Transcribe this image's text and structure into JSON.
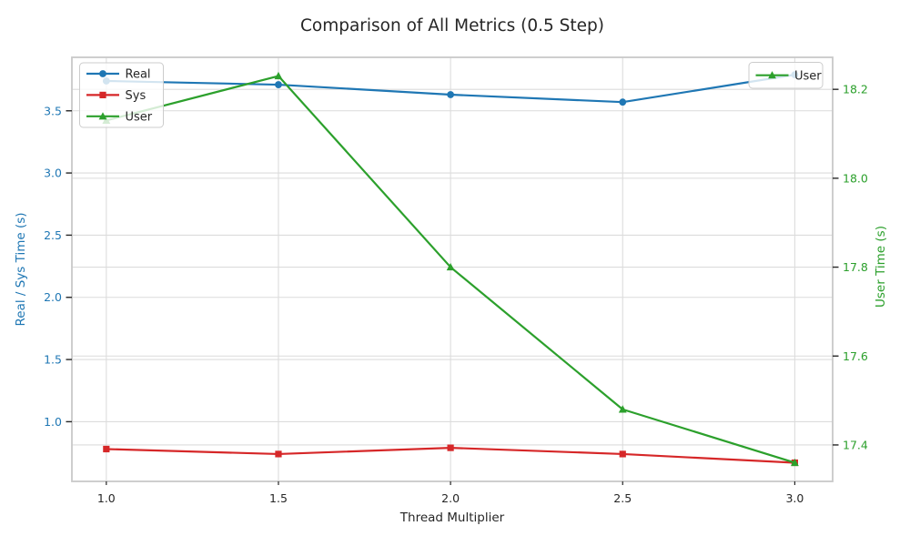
{
  "title": "Comparison of All Metrics (0.5 Step)",
  "colors": {
    "real": "#1f77b4",
    "sys": "#d62728",
    "user": "#2ca02c",
    "grid": "#dcdcdc",
    "spine": "#c9c9c9",
    "tick_mark": "#262626",
    "text": "#262626",
    "legend_border": "#cccccc"
  },
  "chart_data": {
    "type": "line",
    "title": "Comparison of All Metrics (0.5 Step)",
    "xlabel": "Thread Multiplier",
    "ylabel_left": "Real / Sys Time (s)",
    "ylabel_right": "User Time (s)",
    "grid": true,
    "x": [
      1.0,
      1.5,
      2.0,
      2.5,
      3.0
    ],
    "xticks": [
      1.0,
      1.5,
      2.0,
      2.5,
      3.0
    ],
    "xlim": [
      0.9,
      3.11
    ],
    "yticks_left": [
      1.0,
      1.5,
      2.0,
      2.5,
      3.0,
      3.5
    ],
    "ylim_left": [
      0.52,
      3.93
    ],
    "yticks_right": [
      17.4,
      17.6,
      17.8,
      18.0,
      18.2
    ],
    "ylim_right": [
      17.318,
      18.272
    ],
    "series": [
      {
        "name": "Real",
        "axis": "left",
        "marker": "circle",
        "color": "#1f77b4",
        "values": [
          3.74,
          3.71,
          3.63,
          3.57,
          3.79
        ]
      },
      {
        "name": "Sys",
        "axis": "left",
        "marker": "square",
        "color": "#d62728",
        "values": [
          0.78,
          0.74,
          0.79,
          0.74,
          0.67
        ]
      },
      {
        "name": "User",
        "axis": "right",
        "marker": "triangle",
        "color": "#2ca02c",
        "values": [
          18.13,
          18.23,
          17.8,
          17.48,
          17.36
        ]
      }
    ],
    "legends": [
      {
        "position": "upper-left",
        "entries": [
          "Real",
          "Sys",
          "User"
        ]
      },
      {
        "position": "upper-right",
        "entries": [
          "User"
        ]
      }
    ]
  }
}
